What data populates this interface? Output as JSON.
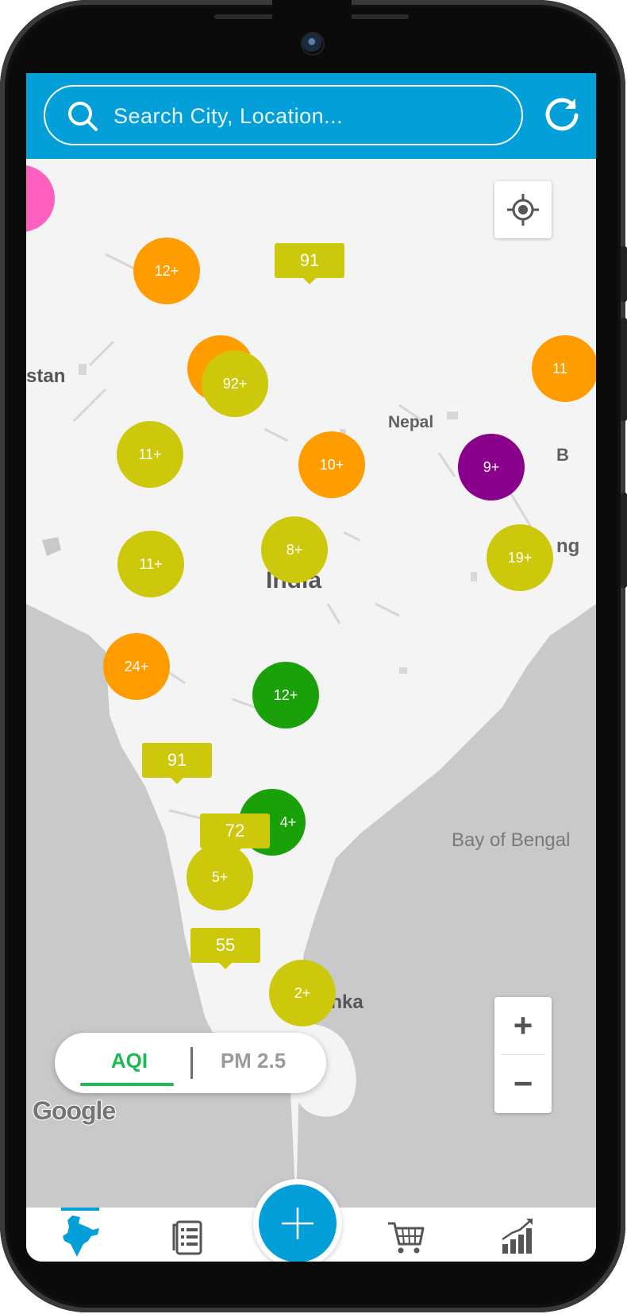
{
  "search": {
    "placeholder": "Search City, Location..."
  },
  "map": {
    "labels": {
      "stan": "stan",
      "nepal": "Nepal",
      "india": "India",
      "bay": "Bay of Bengal",
      "lanka": "anka",
      "b": "B",
      "ng": "ng"
    },
    "clusters": [
      {
        "label": "+",
        "color": "#ff5fbf"
      },
      {
        "label": "12+",
        "color": "#ff9d00"
      },
      {
        "label": "",
        "color": "#ff9d00"
      },
      {
        "label": "92+",
        "color": "#cdc80b"
      },
      {
        "label": "11",
        "color": "#ff9d00"
      },
      {
        "label": "11+",
        "color": "#cdc80b"
      },
      {
        "label": "10+",
        "color": "#ff9d00"
      },
      {
        "label": "9+",
        "color": "#8b008b"
      },
      {
        "label": "11+",
        "color": "#cdc80b"
      },
      {
        "label": "8+",
        "color": "#cdc80b"
      },
      {
        "label": "19+",
        "color": "#cdc80b"
      },
      {
        "label": "24+",
        "color": "#ff9d00"
      },
      {
        "label": "12+",
        "color": "#1aa10a"
      },
      {
        "label": "4+",
        "color": "#1aa10a"
      },
      {
        "label": "5+",
        "color": "#cdc80b"
      },
      {
        "label": "2+",
        "color": "#cdc80b"
      }
    ],
    "markers": [
      "91",
      "91",
      "72",
      "55"
    ],
    "zoom_in": "+",
    "zoom_out": "−",
    "attribution": "Google"
  },
  "toggle": {
    "aqi": "AQI",
    "pm": "PM 2.5",
    "active": "AQI"
  },
  "nav": {
    "items": [
      "map-icon",
      "report-icon",
      "add-icon",
      "cart-icon",
      "stats-icon"
    ],
    "active": "map-icon"
  },
  "colors": {
    "primary": "#029fd9",
    "active_toggle": "#1db954",
    "good": "#1aa10a",
    "moderate": "#cdc80b",
    "poor": "#ff9d00",
    "severe": "#8b008b"
  }
}
